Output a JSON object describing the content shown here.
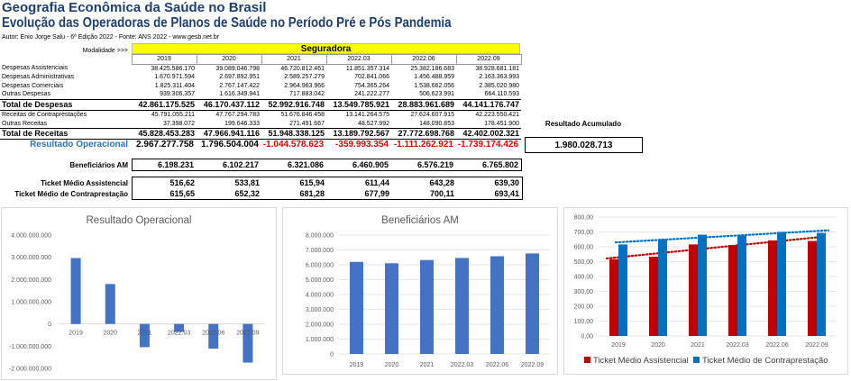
{
  "header": {
    "title": "Geografia Econômica da Saúde no Brasil",
    "subtitle": "Evolução das Operadoras de Planos de Saúde no Período Pré e Pós Pandemia",
    "author": "Autor: Enio Jorge Salu - 6ª Edição 2022 - Fonte: ANS 2022 - www.gesb.net.br"
  },
  "modalidade_label": "Modalidade >>>",
  "modalidade_value": "Seguradora",
  "columns": [
    "2019",
    "2020",
    "2021",
    "2022.03",
    "2022.06",
    "2022.09"
  ],
  "table": {
    "despesas": [
      {
        "label": "Despesas Assistenciais",
        "values": [
          "38.425.586.170",
          "39.089.046.798",
          "46.720.812.461",
          "11.851.357.314",
          "25.382.186.683",
          "38.928.681.181"
        ]
      },
      {
        "label": "Despesas Administrativas",
        "values": [
          "1.670.971.594",
          "2.697.892.951",
          "2.589.257.279",
          "702.841.066",
          "1.456.488.959",
          "2.163.363.993"
        ]
      },
      {
        "label": "Despesas Comerciais",
        "values": [
          "1.825.311.404",
          "2.767.147.422",
          "2.964.963.966",
          "754.365.264",
          "1.538.662.056",
          "2.385.020.980"
        ]
      },
      {
        "label": "Outras Despesas",
        "values": [
          "939.306.357",
          "1.616.349.941",
          "717.883.042",
          "241.222.277",
          "506.623.991",
          "664.110.593"
        ]
      }
    ],
    "total_despesas": {
      "label": "Total de Despesas",
      "values": [
        "42.861.175.525",
        "46.170.437.112",
        "52.992.916.748",
        "13.549.785.921",
        "28.883.961.689",
        "44.141.176.747"
      ]
    },
    "receitas": [
      {
        "label": "Receitas de Contraprestações",
        "values": [
          "45.791.055.211",
          "47.767.294.783",
          "51.676.846.458",
          "13.141.264.575",
          "27.624.607.915",
          "42.223.550.421"
        ]
      },
      {
        "label": "Outras Receitas",
        "values": [
          "37.398.072",
          "199.646.333",
          "271.491.667",
          "48.527.992",
          "148.090.853",
          "178.451.900"
        ]
      }
    ],
    "total_receitas": {
      "label": "Total de Receitas",
      "values": [
        "45.828.453.283",
        "47.966.941.116",
        "51.948.338.125",
        "13.189.792.567",
        "27.772.698.768",
        "42.402.002.321"
      ]
    }
  },
  "resultado_acumulado_label": "Resultado Acumulado",
  "resultado_acumulado_value": "1.980.028.713",
  "resultado_operacional": {
    "label": "Resultado Operacional",
    "values": [
      "2.967.277.758",
      "1.796.504.004",
      "-1.044.578.623",
      "-359.993.354",
      "-1.111.262.921",
      "-1.739.174.426"
    ]
  },
  "beneficiarios": {
    "label": "Beneficiários AM",
    "values": [
      "6.198.231",
      "6.102.217",
      "6.321.086",
      "6.460.905",
      "6.576.219",
      "6.765.802"
    ]
  },
  "ticket_assistencial": {
    "label": "Ticket Médio Assistencial",
    "values": [
      "516,62",
      "533,81",
      "615,94",
      "611,44",
      "643,28",
      "639,30"
    ]
  },
  "ticket_contraprestacao": {
    "label": "Ticket Médio de Contraprestação",
    "values": [
      "615,65",
      "652,32",
      "681,28",
      "677,99",
      "700,11",
      "693,41"
    ]
  },
  "chart_data": [
    {
      "type": "bar",
      "title": "Resultado Operacional",
      "categories": [
        "2019",
        "2020",
        "2021",
        "2022.03",
        "2022.06",
        "2022.09"
      ],
      "values": [
        2967277758,
        1796504004,
        -1044578623,
        -359993354,
        -1111262921,
        -1739174426
      ],
      "ylim": [
        -2000000000,
        4000000000
      ],
      "yticks": [
        -2000000000,
        -1000000000,
        0,
        1000000000,
        2000000000,
        3000000000,
        4000000000
      ],
      "ytick_labels": [
        "-2.000.000.000",
        "-1.000.000.000",
        "0",
        "1.000.000.000",
        "2.000.000.000",
        "3.000.000.000",
        "4.000.000.000"
      ],
      "color": "#4472c4",
      "grid": false
    },
    {
      "type": "bar",
      "title": "Beneficiários AM",
      "categories": [
        "2019",
        "2020",
        "2021",
        "2022.03",
        "2022.06",
        "2022.09"
      ],
      "values": [
        6198231,
        6102217,
        6321086,
        6460905,
        6576219,
        6765802
      ],
      "ylim": [
        0,
        8000000
      ],
      "yticks": [
        0,
        1000000,
        2000000,
        3000000,
        4000000,
        5000000,
        6000000,
        7000000,
        8000000
      ],
      "ytick_labels": [
        "0",
        "1.000.000",
        "2.000.000",
        "3.000.000",
        "4.000.000",
        "5.000.000",
        "6.000.000",
        "7.000.000",
        "8.000.000"
      ],
      "color": "#4472c4",
      "grid": true
    },
    {
      "type": "bar",
      "title": "",
      "categories": [
        "2019",
        "2020",
        "2021",
        "2022.03",
        "2022.06",
        "2022.09"
      ],
      "series": [
        {
          "name": "Ticket Médio Assistencial",
          "values": [
            516.62,
            533.81,
            615.94,
            611.44,
            643.28,
            639.3
          ],
          "color": "#c00000"
        },
        {
          "name": "Ticket Médio de Contraprestação",
          "values": [
            615.65,
            652.32,
            681.28,
            677.99,
            700.11,
            693.41
          ],
          "color": "#0070c0"
        }
      ],
      "trendlines": true,
      "ylim": [
        0,
        800
      ],
      "yticks": [
        0,
        100,
        200,
        300,
        400,
        500,
        600,
        700,
        800
      ],
      "ytick_labels": [
        "0,00",
        "100,00",
        "200,00",
        "300,00",
        "400,00",
        "500,00",
        "600,00",
        "700,00",
        "800,00"
      ],
      "legend": "bottom",
      "grid": true
    }
  ]
}
